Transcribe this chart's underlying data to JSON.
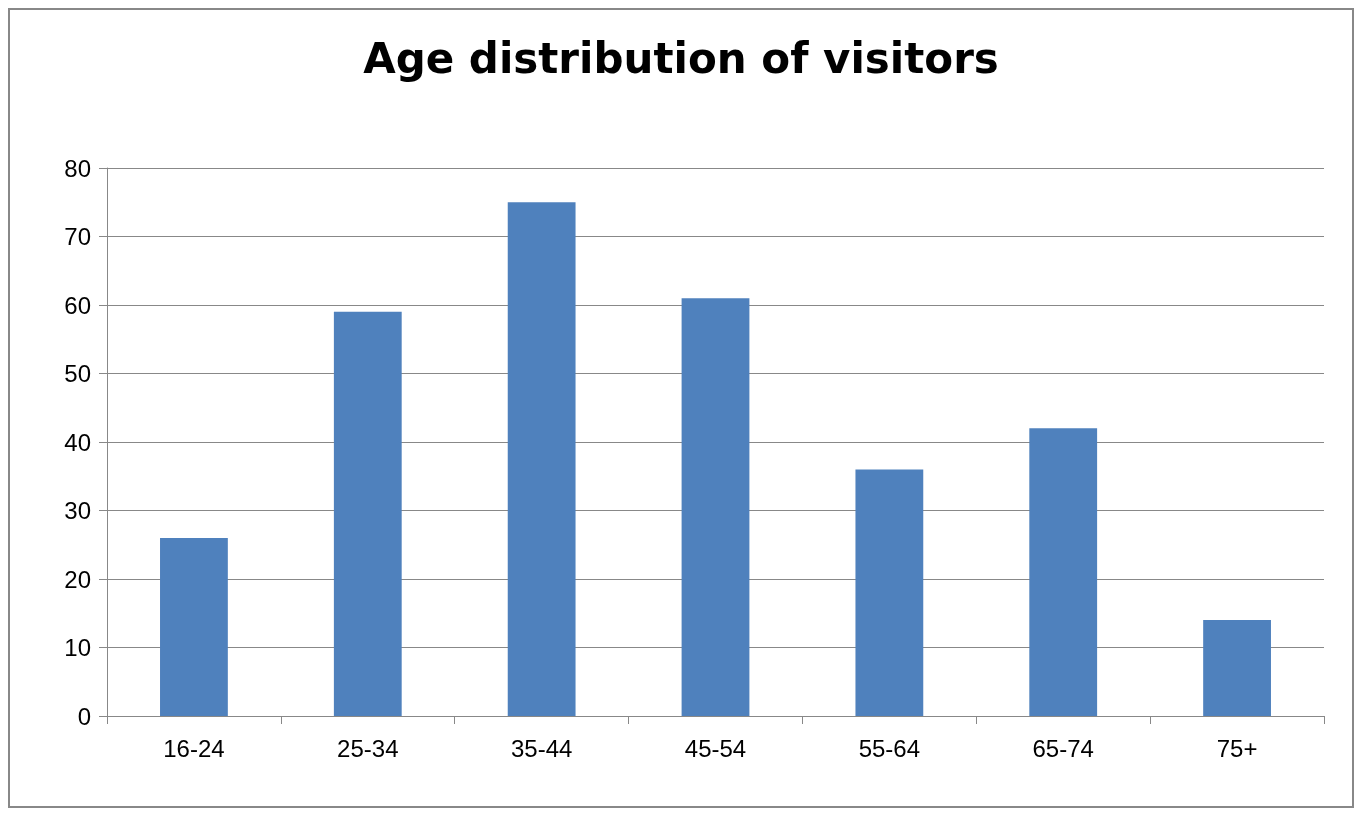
{
  "chart_data": {
    "type": "bar",
    "title": "Age distribution of visitors",
    "categories": [
      "16-24",
      "25-34",
      "35-44",
      "45-54",
      "55-64",
      "65-74",
      "75+"
    ],
    "values": [
      26,
      59,
      75,
      61,
      36,
      42,
      14
    ],
    "color": "#4f81bd",
    "ylim": [
      0,
      80
    ],
    "yticks": [
      0,
      10,
      20,
      30,
      40,
      50,
      60,
      70,
      80
    ],
    "grid": "y"
  }
}
